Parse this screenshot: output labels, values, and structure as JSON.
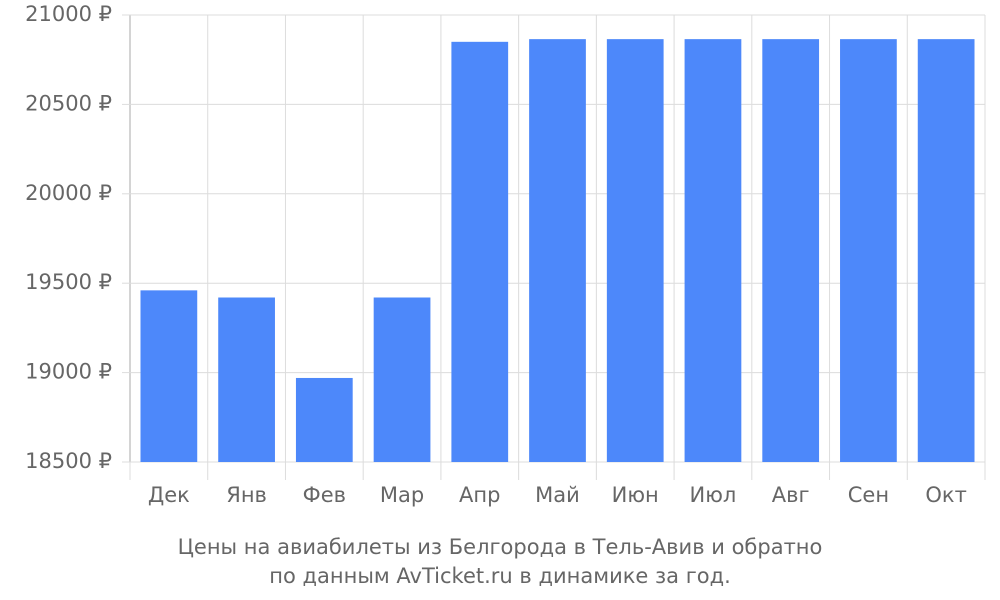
{
  "chart_data": {
    "type": "bar",
    "title": "Цены на авиабилеты из Белгорода в Тель-Авив и обратно",
    "subtitle": "по данным AvTicket.ru в динамике за год.",
    "categories": [
      "Дек",
      "Янв",
      "Фев",
      "Мар",
      "Апр",
      "Май",
      "Июн",
      "Июл",
      "Авг",
      "Сен",
      "Окт"
    ],
    "values": [
      19460,
      19420,
      18970,
      19420,
      20850,
      20865,
      20865,
      20865,
      20865,
      20865,
      20865
    ],
    "color": "#4d88fa",
    "ylim": [
      18500,
      21000
    ],
    "yticks": [
      {
        "value": 18500,
        "label": "18500 ₽"
      },
      {
        "value": 19000,
        "label": "19000 ₽"
      },
      {
        "value": 19500,
        "label": "19500 ₽"
      },
      {
        "value": 20000,
        "label": "20000 ₽"
      },
      {
        "value": 20500,
        "label": "20500 ₽"
      },
      {
        "value": 21000,
        "label": "21000 ₽"
      }
    ],
    "grid": true
  }
}
